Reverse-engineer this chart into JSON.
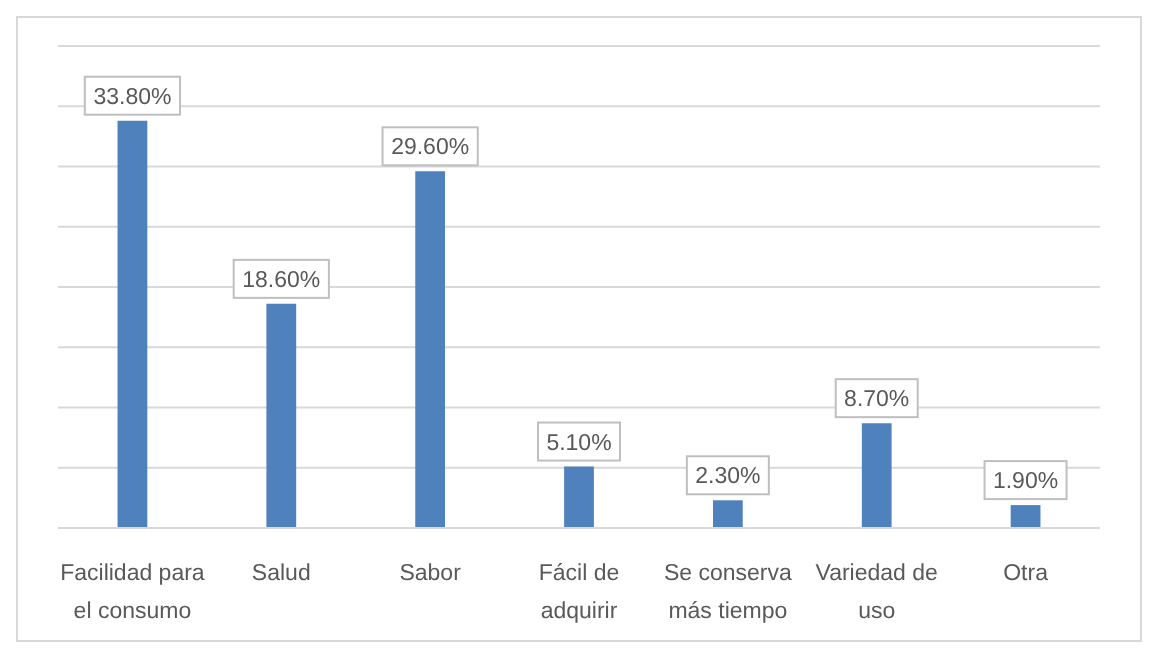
{
  "chart_data": {
    "type": "bar",
    "categories": [
      "Facilidad para el consumo",
      "Salud",
      "Sabor",
      "Fácil de adquirir",
      "Se conserva más tiempo",
      "Variedad de uso",
      "Otra"
    ],
    "values": [
      33.8,
      18.6,
      29.6,
      5.1,
      2.3,
      8.7,
      1.9
    ],
    "value_labels": [
      "33.80%",
      "18.60%",
      "29.60%",
      "5.10%",
      "2.30%",
      "8.70%",
      "1.90%"
    ],
    "color": "#4f81bd",
    "grid": "y",
    "tick_labels": "x"
  }
}
